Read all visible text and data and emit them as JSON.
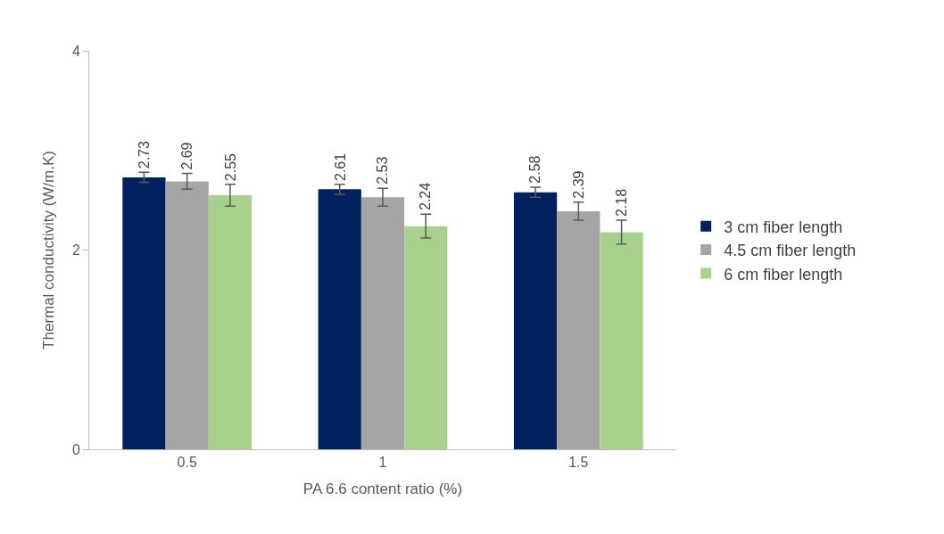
{
  "chart_data": {
    "type": "bar",
    "xlabel": "PA 6.6 content ratio (%)",
    "ylabel": "Thermal conductivity (W/m.K)",
    "categories": [
      "0.5",
      "1",
      "1.5"
    ],
    "series": [
      {
        "name": "3 cm fiber length",
        "color": "#002060",
        "values": [
          2.73,
          2.61,
          2.58
        ],
        "errors": [
          0.05,
          0.05,
          0.05
        ]
      },
      {
        "name": "4.5 cm fiber length",
        "color": "#a5a5a5",
        "values": [
          2.69,
          2.53,
          2.39
        ],
        "errors": [
          0.08,
          0.09,
          0.09
        ]
      },
      {
        "name": "6 cm fiber length",
        "color": "#a9d18e",
        "values": [
          2.55,
          2.24,
          2.18
        ],
        "errors": [
          0.11,
          0.12,
          0.12
        ]
      }
    ],
    "ylim": [
      0,
      4
    ],
    "yticks": [
      0,
      2,
      4
    ],
    "legend": "right",
    "data_labels": true
  }
}
